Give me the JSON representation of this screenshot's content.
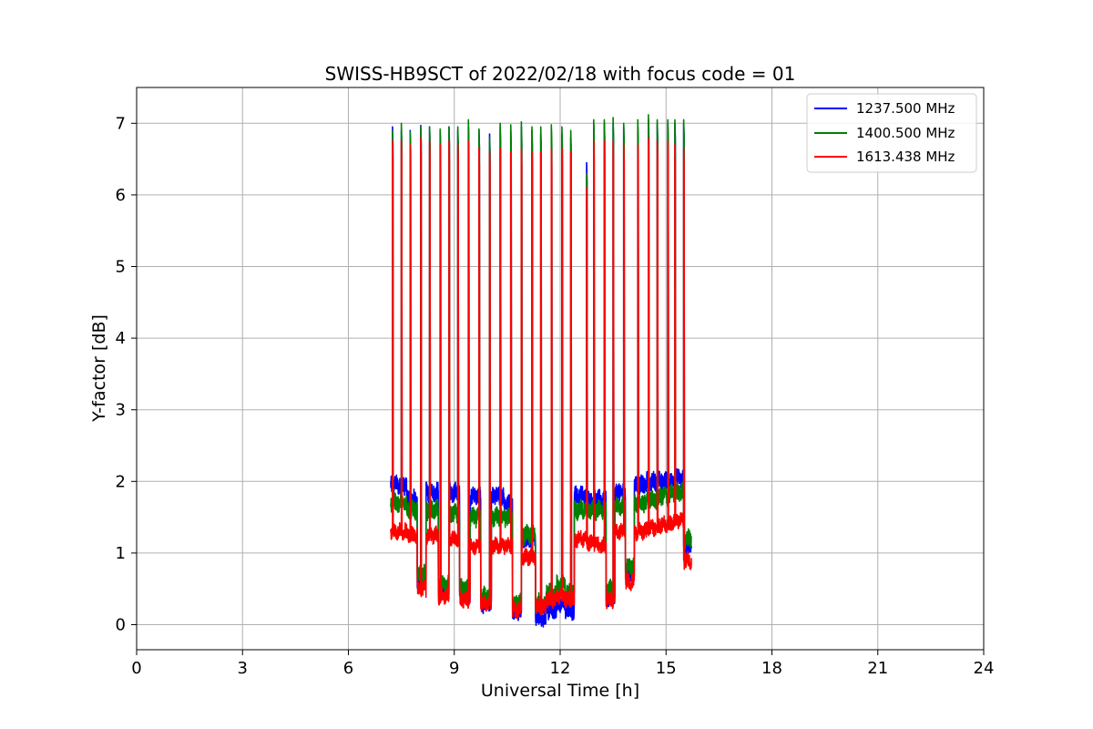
{
  "chart_data": {
    "type": "line",
    "title": "SWISS-HB9SCT of 2022/02/18 with focus code = 01",
    "xlabel": "Universal Time [h]",
    "ylabel": "Y-factor [dB]",
    "xlim": [
      0,
      24
    ],
    "ylim": [
      -0.35,
      7.5
    ],
    "xticks": [
      0,
      3,
      6,
      9,
      12,
      15,
      18,
      21,
      24
    ],
    "xtick_labels": [
      "0",
      "3",
      "6",
      "9",
      "12",
      "15",
      "18",
      "21",
      "24"
    ],
    "yticks": [
      0,
      1,
      2,
      3,
      4,
      5,
      6,
      7
    ],
    "ytick_labels": [
      "0",
      "1",
      "2",
      "3",
      "4",
      "5",
      "6",
      "7"
    ],
    "grid": true,
    "legend_position": "top-right",
    "segments": [
      {
        "start": 7.2,
        "end": 7.65,
        "blue": 1.95,
        "green": 1.7,
        "red": 1.3
      },
      {
        "start": 7.65,
        "end": 7.95,
        "blue": 1.75,
        "green": 1.6,
        "red": 1.25
      },
      {
        "start": 7.95,
        "end": 8.2,
        "blue": 0.6,
        "green": 0.7,
        "red": 0.5
      },
      {
        "start": 8.2,
        "end": 8.55,
        "blue": 1.85,
        "green": 1.6,
        "red": 1.25
      },
      {
        "start": 8.55,
        "end": 8.85,
        "blue": 0.5,
        "green": 0.55,
        "red": 0.4
      },
      {
        "start": 8.85,
        "end": 9.15,
        "blue": 1.85,
        "green": 1.55,
        "red": 1.2
      },
      {
        "start": 9.15,
        "end": 9.45,
        "blue": 0.45,
        "green": 0.5,
        "red": 0.35
      },
      {
        "start": 9.45,
        "end": 9.75,
        "blue": 1.8,
        "green": 1.5,
        "red": 1.1
      },
      {
        "start": 9.75,
        "end": 10.05,
        "blue": 0.3,
        "green": 0.4,
        "red": 0.3
      },
      {
        "start": 10.05,
        "end": 10.4,
        "blue": 1.8,
        "green": 1.5,
        "red": 1.1
      },
      {
        "start": 10.4,
        "end": 10.65,
        "blue": 1.7,
        "green": 1.5,
        "red": 1.1
      },
      {
        "start": 10.65,
        "end": 10.9,
        "blue": 0.2,
        "green": 0.3,
        "red": 0.2
      },
      {
        "start": 10.9,
        "end": 11.3,
        "blue": 1.2,
        "green": 1.25,
        "red": 0.95
      },
      {
        "start": 11.3,
        "end": 11.6,
        "blue": 0.1,
        "green": 0.3,
        "red": 0.25
      },
      {
        "start": 11.6,
        "end": 11.9,
        "blue": 0.2,
        "green": 0.45,
        "red": 0.35
      },
      {
        "start": 11.9,
        "end": 12.15,
        "blue": 0.3,
        "green": 0.55,
        "red": 0.4
      },
      {
        "start": 12.15,
        "end": 12.4,
        "blue": 0.2,
        "green": 0.45,
        "red": 0.35
      },
      {
        "start": 12.4,
        "end": 12.75,
        "blue": 1.8,
        "green": 1.6,
        "red": 1.2
      },
      {
        "start": 12.75,
        "end": 13.05,
        "blue": 1.75,
        "green": 1.6,
        "red": 1.15
      },
      {
        "start": 13.05,
        "end": 13.3,
        "blue": 1.75,
        "green": 1.6,
        "red": 1.1
      },
      {
        "start": 13.3,
        "end": 13.55,
        "blue": 0.4,
        "green": 0.5,
        "red": 0.35
      },
      {
        "start": 13.55,
        "end": 13.85,
        "blue": 1.85,
        "green": 1.65,
        "red": 1.3
      },
      {
        "start": 13.85,
        "end": 14.1,
        "blue": 0.7,
        "green": 0.8,
        "red": 0.6
      },
      {
        "start": 14.1,
        "end": 14.45,
        "blue": 1.95,
        "green": 1.7,
        "red": 1.3
      },
      {
        "start": 14.45,
        "end": 14.8,
        "blue": 2.0,
        "green": 1.75,
        "red": 1.35
      },
      {
        "start": 14.8,
        "end": 15.15,
        "blue": 2.0,
        "green": 1.8,
        "red": 1.4
      },
      {
        "start": 15.15,
        "end": 15.5,
        "blue": 2.05,
        "green": 1.85,
        "red": 1.45
      },
      {
        "start": 15.5,
        "end": 15.72,
        "blue": 1.1,
        "green": 1.2,
        "red": 0.9
      }
    ],
    "peaks": [
      {
        "x": 7.25,
        "blue": 6.95,
        "green": 6.9,
        "red": 6.75
      },
      {
        "x": 7.5,
        "blue": 6.9,
        "green": 7.0,
        "red": 6.75
      },
      {
        "x": 7.75,
        "blue": 6.9,
        "green": 6.88,
        "red": 6.7
      },
      {
        "x": 8.05,
        "blue": 6.97,
        "green": 6.95,
        "red": 6.8
      },
      {
        "x": 8.3,
        "blue": 6.95,
        "green": 6.95,
        "red": 6.75
      },
      {
        "x": 8.6,
        "blue": 6.9,
        "green": 6.92,
        "red": 6.7
      },
      {
        "x": 8.85,
        "blue": 6.95,
        "green": 6.95,
        "red": 6.75
      },
      {
        "x": 9.1,
        "blue": 6.9,
        "green": 6.95,
        "red": 6.7
      },
      {
        "x": 9.4,
        "blue": 6.95,
        "green": 7.05,
        "red": 6.75
      },
      {
        "x": 9.7,
        "blue": 6.9,
        "green": 6.92,
        "red": 6.65
      },
      {
        "x": 10.0,
        "blue": 6.85,
        "green": 6.8,
        "red": 6.6
      },
      {
        "x": 10.3,
        "blue": 6.95,
        "green": 7.0,
        "red": 6.65
      },
      {
        "x": 10.6,
        "blue": 6.9,
        "green": 6.98,
        "red": 6.6
      },
      {
        "x": 10.9,
        "blue": 6.95,
        "green": 7.02,
        "red": 6.65
      },
      {
        "x": 11.2,
        "blue": 6.9,
        "green": 6.95,
        "red": 6.6
      },
      {
        "x": 11.45,
        "blue": 6.85,
        "green": 6.95,
        "red": 6.6
      },
      {
        "x": 11.75,
        "blue": 6.9,
        "green": 6.98,
        "red": 6.65
      },
      {
        "x": 12.05,
        "blue": 6.85,
        "green": 6.95,
        "red": 6.65
      },
      {
        "x": 12.3,
        "blue": 6.8,
        "green": 6.9,
        "red": 6.6
      },
      {
        "x": 12.75,
        "blue": 6.45,
        "green": 6.3,
        "red": 6.1
      },
      {
        "x": 12.95,
        "blue": 7.0,
        "green": 7.05,
        "red": 6.75
      },
      {
        "x": 13.25,
        "blue": 7.0,
        "green": 7.05,
        "red": 6.75
      },
      {
        "x": 13.5,
        "blue": 7.0,
        "green": 7.08,
        "red": 6.75
      },
      {
        "x": 13.8,
        "blue": 6.95,
        "green": 7.0,
        "red": 6.7
      },
      {
        "x": 14.2,
        "blue": 6.95,
        "green": 7.05,
        "red": 6.7
      },
      {
        "x": 14.5,
        "blue": 7.05,
        "green": 7.12,
        "red": 6.8
      },
      {
        "x": 14.75,
        "blue": 7.0,
        "green": 7.05,
        "red": 6.75
      },
      {
        "x": 15.05,
        "blue": 7.0,
        "green": 7.05,
        "red": 6.75
      },
      {
        "x": 15.25,
        "blue": 7.0,
        "green": 7.05,
        "red": 6.7
      },
      {
        "x": 15.5,
        "blue": 7.0,
        "green": 7.05,
        "red": 6.65
      }
    ],
    "series": [
      {
        "key": "blue",
        "name": "1237.500 MHz",
        "color": "#0000ff"
      },
      {
        "key": "green",
        "name": "1400.500 MHz",
        "color": "#008000"
      },
      {
        "key": "red",
        "name": "1613.438 MHz",
        "color": "#ff0000"
      }
    ]
  }
}
